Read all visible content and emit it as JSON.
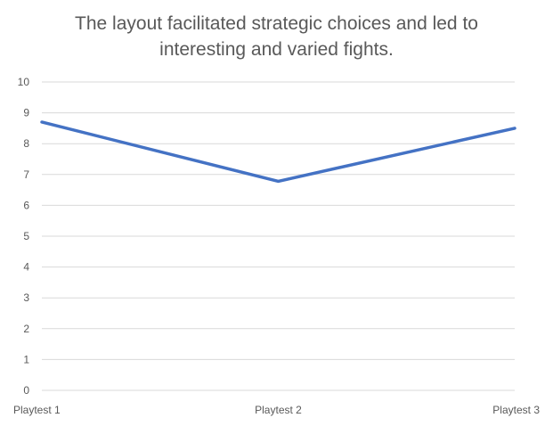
{
  "chart_data": {
    "type": "line",
    "title": "The layout facilitated strategic choices and led to\ninteresting and varied fights.",
    "categories": [
      "Playtest 1",
      "Playtest 2",
      "Playtest 3"
    ],
    "series": [
      {
        "values": [
          8.7,
          6.78,
          8.5
        ],
        "color": "#4472c4"
      }
    ],
    "ylim": [
      0,
      10
    ],
    "yticks": [
      "0",
      "1",
      "2",
      "3",
      "4",
      "5",
      "6",
      "7",
      "8",
      "9",
      "10"
    ],
    "grid": true,
    "legend": "none",
    "gridline_color": "#d9d9d9",
    "text_color": "#595959"
  }
}
